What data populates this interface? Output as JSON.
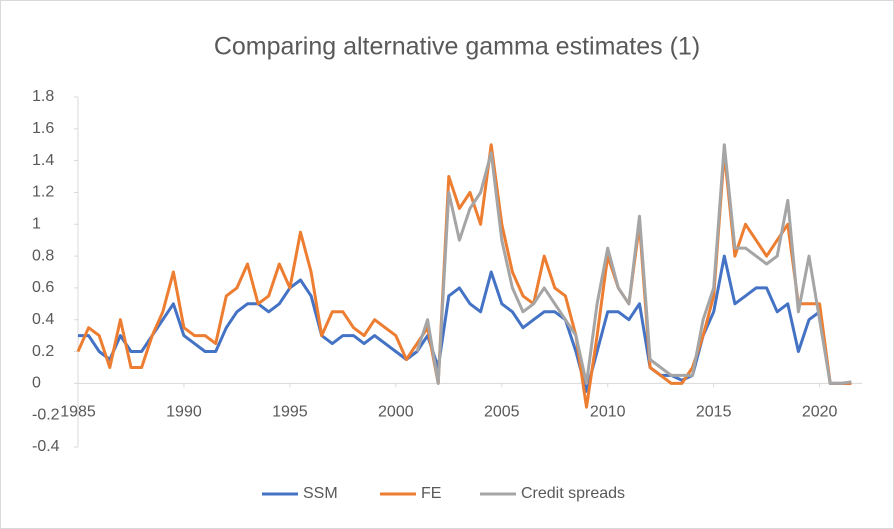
{
  "chart_data": {
    "type": "line",
    "title": "Comparing alternative gamma estimates (1)",
    "x": [
      1985,
      1985.5,
      1986,
      1986.5,
      1987,
      1987.5,
      1988,
      1988.5,
      1989,
      1989.5,
      1990,
      1990.5,
      1991,
      1991.5,
      1992,
      1992.5,
      1993,
      1993.5,
      1994,
      1994.5,
      1995,
      1995.5,
      1996,
      1996.5,
      1997,
      1997.5,
      1998,
      1998.5,
      1999,
      1999.5,
      2000,
      2000.5,
      2001,
      2001.5,
      2002,
      2002.5,
      2003,
      2003.5,
      2004,
      2004.5,
      2005,
      2005.5,
      2006,
      2006.5,
      2007,
      2007.5,
      2008,
      2008.5,
      2009,
      2009.5,
      2010,
      2010.5,
      2011,
      2011.5,
      2012,
      2012.5,
      2013,
      2013.5,
      2014,
      2014.5,
      2015,
      2015.5,
      2016,
      2016.5,
      2017,
      2017.5,
      2018,
      2018.5,
      2019,
      2019.5,
      2020,
      2020.5,
      2021,
      2021.5
    ],
    "series": [
      {
        "name": "SSM",
        "color": "#4472c4",
        "values": [
          0.3,
          0.3,
          0.2,
          0.15,
          0.3,
          0.2,
          0.2,
          0.3,
          0.4,
          0.5,
          0.3,
          0.25,
          0.2,
          0.2,
          0.35,
          0.45,
          0.5,
          0.5,
          0.45,
          0.5,
          0.6,
          0.65,
          0.55,
          0.3,
          0.25,
          0.3,
          0.3,
          0.25,
          0.3,
          0.25,
          0.2,
          0.15,
          0.2,
          0.3,
          0.1,
          0.55,
          0.6,
          0.5,
          0.45,
          0.7,
          0.5,
          0.45,
          0.35,
          0.4,
          0.45,
          0.45,
          0.4,
          0.2,
          -0.05,
          0.2,
          0.45,
          0.45,
          0.4,
          0.5,
          0.1,
          0.05,
          0.05,
          0.02,
          0.05,
          0.3,
          0.45,
          0.8,
          0.5,
          0.55,
          0.6,
          0.6,
          0.45,
          0.5,
          0.2,
          0.4,
          0.45,
          0,
          0,
          0
        ]
      },
      {
        "name": "FE",
        "color": "#ed7d31",
        "values": [
          0.2,
          0.35,
          0.3,
          0.1,
          0.4,
          0.1,
          0.1,
          0.3,
          0.45,
          0.7,
          0.35,
          0.3,
          0.3,
          0.25,
          0.55,
          0.6,
          0.75,
          0.5,
          0.55,
          0.75,
          0.6,
          0.95,
          0.7,
          0.3,
          0.45,
          0.45,
          0.35,
          0.3,
          0.4,
          0.35,
          0.3,
          0.15,
          0.25,
          0.35,
          0,
          1.3,
          1.1,
          1.2,
          1,
          1.5,
          1,
          0.7,
          0.55,
          0.5,
          0.8,
          0.6,
          0.55,
          0.3,
          -0.15,
          0.3,
          0.8,
          0.6,
          0.5,
          1,
          0.1,
          0.05,
          0,
          0,
          0.1,
          0.3,
          0.55,
          1.45,
          0.8,
          1,
          0.9,
          0.8,
          0.9,
          1,
          0.5,
          0.5,
          0.5,
          0,
          0,
          0
        ]
      },
      {
        "name": "Credit spreads",
        "color": "#a5a5a5",
        "values": [
          null,
          null,
          null,
          null,
          null,
          null,
          null,
          null,
          null,
          null,
          null,
          null,
          null,
          null,
          null,
          null,
          null,
          null,
          null,
          null,
          null,
          null,
          null,
          null,
          null,
          null,
          null,
          null,
          null,
          null,
          null,
          null,
          0.2,
          0.4,
          0,
          1.2,
          0.9,
          1.1,
          1.2,
          1.45,
          0.9,
          0.6,
          0.45,
          0.5,
          0.6,
          0.5,
          0.4,
          0.3,
          0,
          0.5,
          0.85,
          0.6,
          0.5,
          1.05,
          0.15,
          0.1,
          0.05,
          0.05,
          0.05,
          0.4,
          0.6,
          1.5,
          0.85,
          0.85,
          0.8,
          0.75,
          0.8,
          1.15,
          0.45,
          0.8,
          0.4,
          0,
          0,
          0.01
        ]
      }
    ],
    "xlim": [
      1985,
      2022
    ],
    "xticks": [
      1985,
      1990,
      1995,
      2000,
      2005,
      2010,
      2015,
      2020
    ],
    "ylim": [
      -0.4,
      1.8
    ],
    "yticks": [
      -0.4,
      -0.2,
      0,
      0.2,
      0.4,
      0.6,
      0.8,
      1,
      1.2,
      1.4,
      1.6,
      1.8
    ],
    "legend": "bottom"
  }
}
